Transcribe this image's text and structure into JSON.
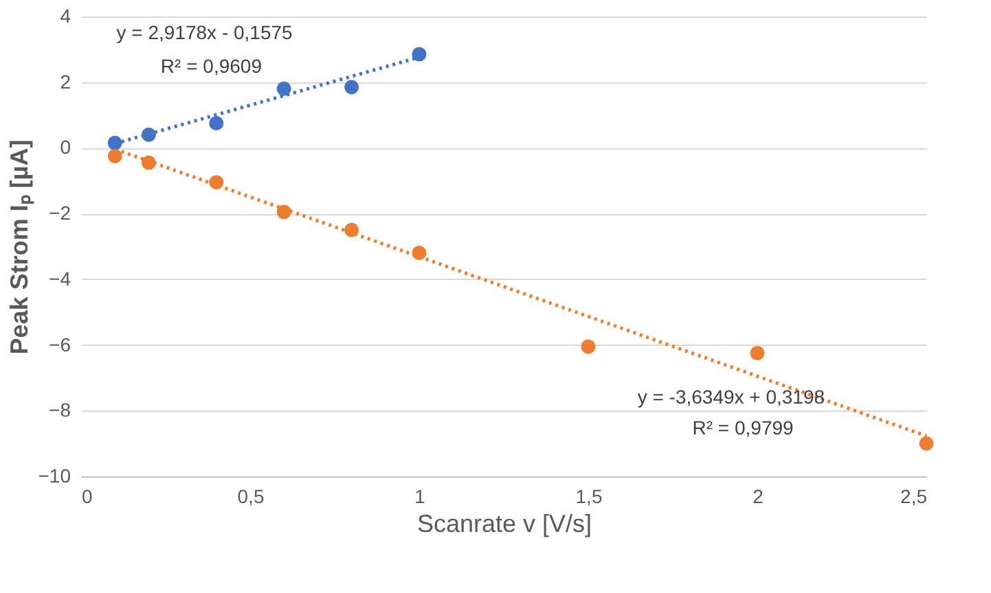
{
  "chart_data": {
    "type": "scatter",
    "xlabel": "Scanrate v [V/s]",
    "ylabel": "Peak Strom Iₚ [µA]",
    "series": [
      {
        "marker": "circle",
        "color": "#4472c4",
        "x": [
          0.1,
          0.2,
          0.4,
          0.6,
          0.8,
          1.0
        ],
        "values": [
          0.15,
          0.4,
          0.75,
          1.8,
          1.85,
          2.85
        ]
      },
      {
        "marker": "circle",
        "color": "#ed7d31",
        "x": [
          0.1,
          0.2,
          0.4,
          0.6,
          0.8,
          1.0,
          1.5,
          2.0,
          2.5
        ],
        "values": [
          -0.25,
          -0.45,
          -1.05,
          -1.95,
          -2.5,
          -3.2,
          -6.05,
          -6.25,
          -9.0
        ]
      },
      {
        "type": "line",
        "marker": "none",
        "color": "#4472c4",
        "line_style": "dotted",
        "x": [
          0.1,
          1.0
        ],
        "values": [
          0.13,
          2.76
        ]
      },
      {
        "type": "line",
        "marker": "none",
        "color": "#ed7d31",
        "line_style": "dotted",
        "x": [
          0.1,
          2.5
        ],
        "values": [
          -0.04,
          -8.77
        ]
      }
    ],
    "annotations": [
      "y = 2,9178x - 0,1575",
      "R² = 0,9609",
      "y = -3,6349x + 0,3198",
      "R² = 0,9799"
    ],
    "xlim": [
      0,
      2.5
    ],
    "xticks": [
      {
        "value": 0,
        "label": "0"
      },
      {
        "value": 0.5,
        "label": "0,5"
      },
      {
        "value": 1,
        "label": "1"
      },
      {
        "value": 1.5,
        "label": "1,5"
      },
      {
        "value": 2,
        "label": "2"
      },
      {
        "value": 2.5,
        "label": "2,5"
      }
    ],
    "ylim": [
      -10,
      4
    ],
    "yticks": [
      -10,
      -8,
      -6,
      -4,
      -2,
      0,
      2,
      4
    ],
    "grid": "y"
  }
}
